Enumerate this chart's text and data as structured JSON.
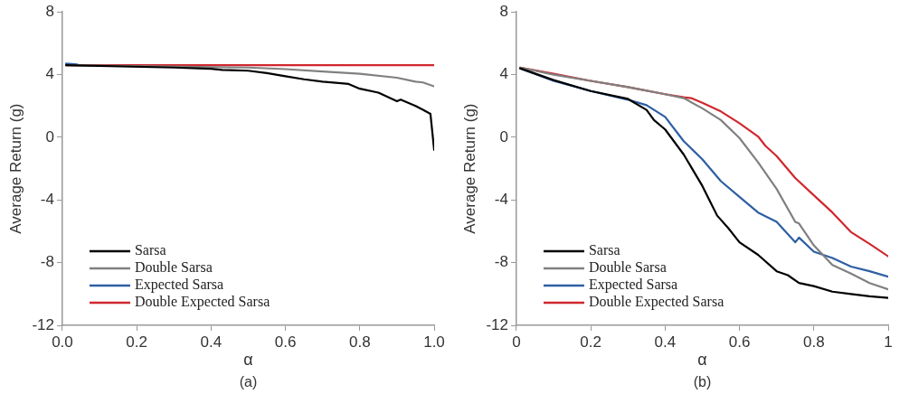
{
  "chart_data": [
    {
      "type": "line",
      "xlabel": "α",
      "ylabel": "Average Return (g)",
      "annotations": [
        "(a)"
      ],
      "xlim": [
        0,
        1
      ],
      "xticks": [
        {
          "value": 0,
          "label": "0.0"
        },
        {
          "value": 0.2,
          "label": "0.2"
        },
        {
          "value": 0.4,
          "label": "0.4"
        },
        {
          "value": 0.6,
          "label": "0.6"
        },
        {
          "value": 0.8,
          "label": "0.8"
        },
        {
          "value": 1,
          "label": "1.0"
        }
      ],
      "ylim": [
        -12,
        8
      ],
      "yticks": [
        -12,
        -8,
        -4,
        0,
        4,
        8
      ],
      "grid": false,
      "legend": "bottom left",
      "marker": "none",
      "line_style": "solid",
      "series": [
        {
          "name": "Sarsa",
          "color": "#000000",
          "x": [
            0.01,
            0.3,
            0.4,
            0.43,
            0.5,
            0.55,
            0.6,
            0.65,
            0.7,
            0.75,
            0.77,
            0.8,
            0.85,
            0.9,
            0.91,
            0.95,
            0.97,
            0.99,
            1.0
          ],
          "values": [
            4.6,
            4.45,
            4.37,
            4.3,
            4.25,
            4.1,
            3.9,
            3.7,
            3.55,
            3.45,
            3.4,
            3.1,
            2.85,
            2.3,
            2.4,
            2.0,
            1.75,
            1.5,
            -0.8
          ]
        },
        {
          "name": "Double Sarsa",
          "color": "#808080",
          "x": [
            0.01,
            0.5,
            0.6,
            0.7,
            0.8,
            0.9,
            0.95,
            0.97,
            1.0
          ],
          "values": [
            4.6,
            4.45,
            4.35,
            4.2,
            4.05,
            3.8,
            3.55,
            3.5,
            3.25
          ]
        },
        {
          "name": "Expected Sarsa",
          "color": "#2e5fa3",
          "x": [
            0.01,
            0.04
          ],
          "values": [
            4.7,
            4.65
          ]
        },
        {
          "name": "Double Expected Sarsa",
          "color": "#d0282e",
          "x": [
            0.01,
            1.0
          ],
          "values": [
            4.6,
            4.6
          ]
        }
      ]
    },
    {
      "type": "line",
      "xlabel": "α",
      "ylabel": "Average Return (g)",
      "annotations": [
        "(b)"
      ],
      "xlim": [
        0,
        1
      ],
      "xticks": [
        0,
        0.2,
        0.4,
        0.6,
        0.8,
        1
      ],
      "ylim": [
        -12,
        8
      ],
      "yticks": [
        -12,
        -8,
        -4,
        0,
        4,
        8
      ],
      "grid": false,
      "legend": "bottom left",
      "marker": "none",
      "line_style": "solid",
      "series": [
        {
          "name": "Sarsa",
          "color": "#000000",
          "x": [
            0.01,
            0.1,
            0.2,
            0.3,
            0.35,
            0.37,
            0.4,
            0.45,
            0.5,
            0.52,
            0.54,
            0.57,
            0.6,
            0.65,
            0.7,
            0.73,
            0.76,
            0.8,
            0.85,
            0.9,
            0.95,
            1.0
          ],
          "values": [
            4.4,
            3.65,
            2.95,
            2.45,
            1.75,
            1.1,
            0.5,
            -1.1,
            -3.1,
            -4.05,
            -5.0,
            -5.8,
            -6.7,
            -7.5,
            -8.55,
            -8.8,
            -9.3,
            -9.5,
            -9.85,
            -10.0,
            -10.15,
            -10.25
          ]
        },
        {
          "name": "Double Sarsa",
          "color": "#808080",
          "x": [
            0.01,
            0.1,
            0.2,
            0.3,
            0.4,
            0.45,
            0.5,
            0.55,
            0.6,
            0.65,
            0.7,
            0.75,
            0.76,
            0.8,
            0.85,
            0.9,
            0.95,
            1.0
          ],
          "values": [
            4.45,
            4.0,
            3.6,
            3.2,
            2.75,
            2.5,
            1.85,
            1.1,
            -0.05,
            -1.6,
            -3.3,
            -5.4,
            -5.5,
            -6.9,
            -8.15,
            -8.7,
            -9.3,
            -9.7
          ]
        },
        {
          "name": "Expected Sarsa",
          "color": "#2e5fa3",
          "x": [
            0.01,
            0.1,
            0.2,
            0.3,
            0.35,
            0.4,
            0.45,
            0.5,
            0.55,
            0.6,
            0.65,
            0.7,
            0.75,
            0.76,
            0.8,
            0.85,
            0.9,
            0.95,
            1.0
          ],
          "values": [
            4.4,
            3.6,
            2.95,
            2.4,
            2.05,
            1.3,
            -0.25,
            -1.4,
            -2.8,
            -3.8,
            -4.8,
            -5.4,
            -6.7,
            -6.4,
            -7.3,
            -7.7,
            -8.25,
            -8.55,
            -8.9
          ]
        },
        {
          "name": "Double Expected Sarsa",
          "color": "#d0282e",
          "x": [
            0.01,
            0.1,
            0.2,
            0.3,
            0.4,
            0.45,
            0.47,
            0.5,
            0.55,
            0.6,
            0.65,
            0.67,
            0.7,
            0.75,
            0.8,
            0.85,
            0.9,
            0.95,
            1.0
          ],
          "values": [
            4.45,
            4.05,
            3.6,
            3.2,
            2.75,
            2.55,
            2.5,
            2.2,
            1.65,
            0.9,
            0.05,
            -0.55,
            -1.2,
            -2.6,
            -3.7,
            -4.8,
            -6.05,
            -6.8,
            -7.6
          ]
        }
      ]
    }
  ]
}
